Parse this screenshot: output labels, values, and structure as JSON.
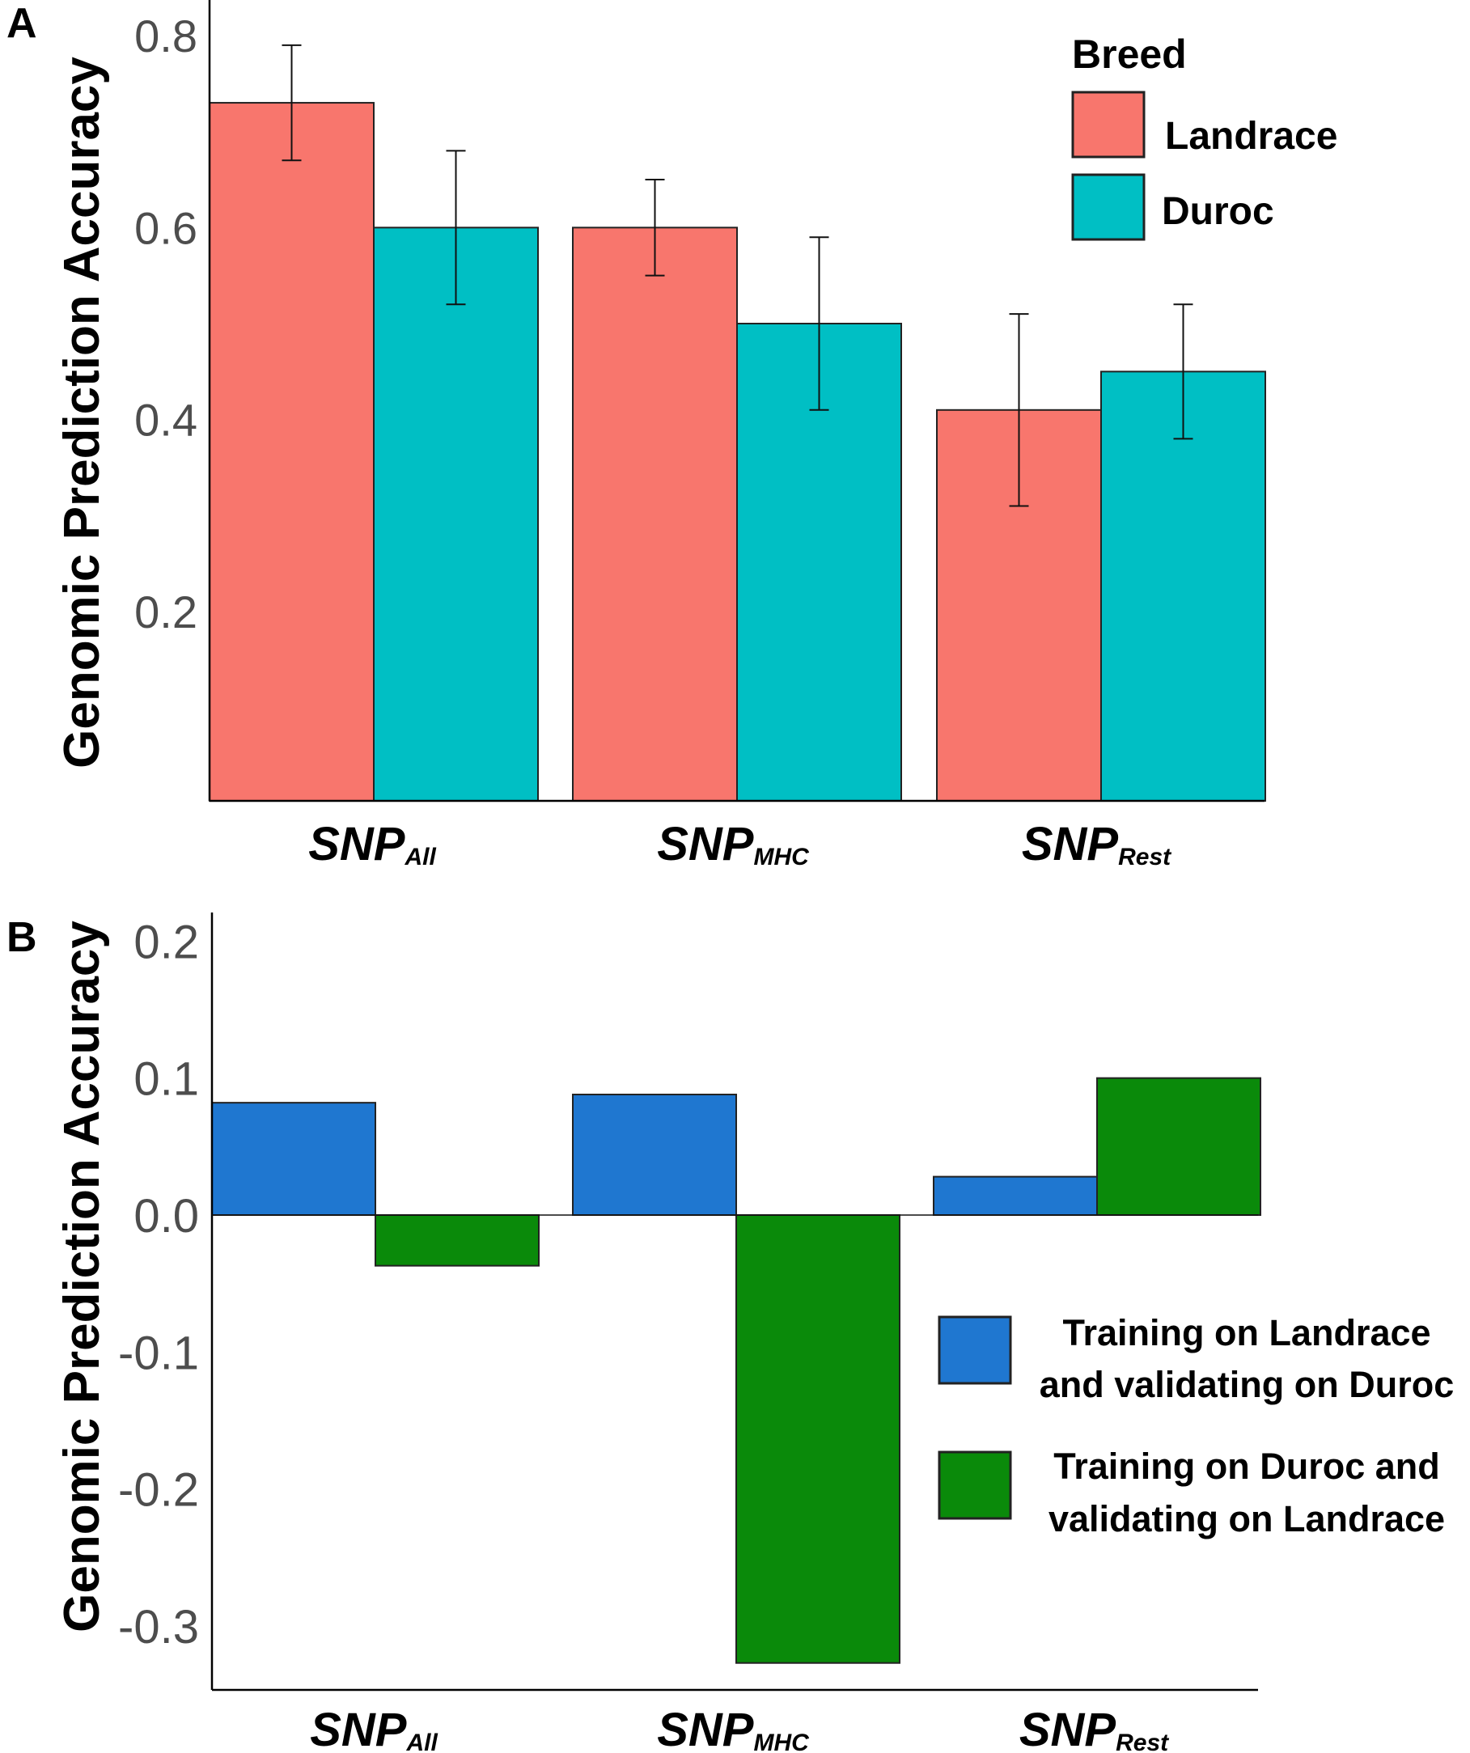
{
  "colors": {
    "landrace": "#F8766D",
    "duroc": "#00BFC4",
    "blue": "#1F77D0",
    "green": "#0A8A0A"
  },
  "chart_data": [
    {
      "panel": "A",
      "type": "bar",
      "ylabel": "Genomic Prediction Accuracy",
      "ylim": [
        0.0,
        0.82
      ],
      "yticks": [
        0.2,
        0.4,
        0.6,
        0.8
      ],
      "ytick_labels": [
        "0.2",
        "0.4",
        "0.6",
        "0.8"
      ],
      "categories": [
        {
          "main": "SNP",
          "sub": "All"
        },
        {
          "main": "SNP",
          "sub": "MHC"
        },
        {
          "main": "SNP",
          "sub": "Rest"
        }
      ],
      "legend_title": "Breed",
      "legend_position": "top-right",
      "series": [
        {
          "name": "Landrace",
          "color_key": "landrace",
          "values": [
            0.73,
            0.6,
            0.41
          ],
          "err_low": [
            0.67,
            0.55,
            0.31
          ],
          "err_high": [
            0.79,
            0.65,
            0.51
          ]
        },
        {
          "name": "Duroc",
          "color_key": "duroc",
          "values": [
            0.6,
            0.5,
            0.45
          ],
          "err_low": [
            0.52,
            0.41,
            0.38
          ],
          "err_high": [
            0.68,
            0.59,
            0.52
          ]
        }
      ]
    },
    {
      "panel": "B",
      "type": "bar",
      "ylabel": "Genomic Prediction Accuracy",
      "ylim": [
        -0.33,
        0.22
      ],
      "yticks": [
        0.2,
        0.1,
        0.0,
        -0.1,
        -0.2,
        -0.3
      ],
      "ytick_labels": [
        "0.2",
        "0.1",
        "0.0",
        "-0.1",
        "-0.2",
        "-0.3"
      ],
      "categories": [
        {
          "main": "SNP",
          "sub": "All"
        },
        {
          "main": "SNP",
          "sub": "MHC"
        },
        {
          "main": "SNP",
          "sub": "Rest"
        }
      ],
      "legend_position": "bottom-right",
      "series": [
        {
          "name": "Training on Landrace and validating on Duroc",
          "legend_lines": [
            "Training on Landrace",
            "and validating on Duroc"
          ],
          "color_key": "blue",
          "values": [
            0.082,
            0.088,
            0.028
          ]
        },
        {
          "name": "Training on Duroc and validating on Landrace",
          "legend_lines": [
            "Training on Duroc and",
            "validating on Landrace"
          ],
          "color_key": "green",
          "values": [
            -0.037,
            -0.327,
            0.1
          ]
        }
      ]
    }
  ]
}
